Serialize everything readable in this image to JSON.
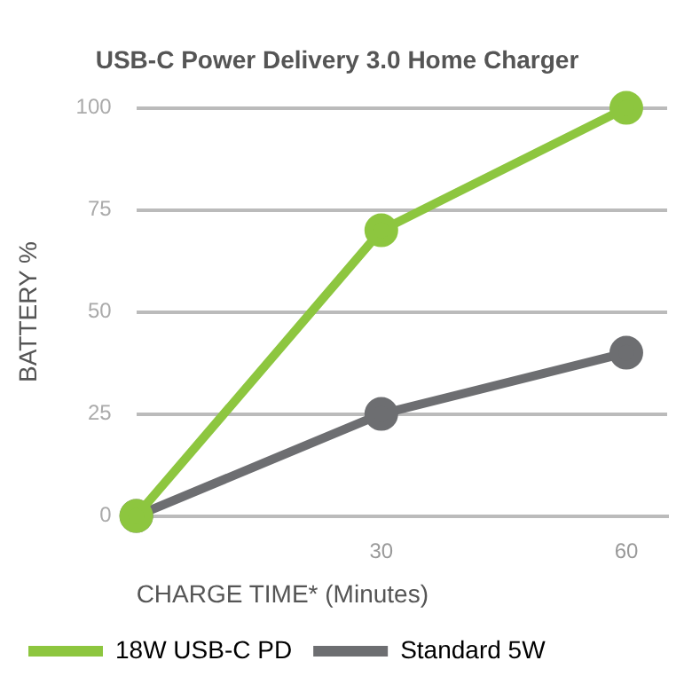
{
  "chart_data": {
    "type": "line",
    "title": "USB-C Power Delivery 3.0 Home Charger",
    "xlabel": "CHARGE TIME* (Minutes)",
    "ylabel": "BATTERY %",
    "x": [
      0,
      30,
      60
    ],
    "series": [
      {
        "name": "18W USB-C PD",
        "color": "#8dc63f",
        "values": [
          0,
          70,
          100
        ]
      },
      {
        "name": "Standard 5W",
        "color": "#6d6e71",
        "values": [
          0,
          25,
          40
        ]
      }
    ],
    "xlim": [
      0,
      65
    ],
    "xticks": [
      30,
      60
    ],
    "ylim": [
      0,
      100
    ],
    "yticks": [
      0,
      25,
      50,
      75,
      100
    ],
    "grid": "y",
    "legend": "bottom",
    "marker": "circle",
    "line_style": "solid"
  }
}
